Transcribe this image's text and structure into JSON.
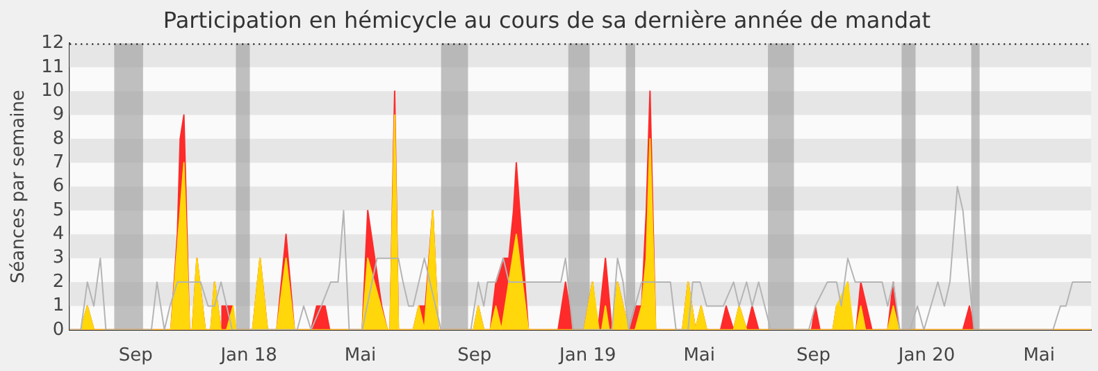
{
  "chart_data": {
    "type": "area",
    "title": "Participation en hémicycle au cours de sa dernière année de mandat",
    "ylabel": "Séances par semaine",
    "xlim": [
      "2017-06-22",
      "2020-06-26"
    ],
    "xticks": [
      {
        "value": "2017-09-01",
        "label": "Sep"
      },
      {
        "value": "2018-01-01",
        "label": "Jan 18"
      },
      {
        "value": "2018-05-01",
        "label": "Mai"
      },
      {
        "value": "2018-09-01",
        "label": "Sep"
      },
      {
        "value": "2019-01-01",
        "label": "Jan 19"
      },
      {
        "value": "2019-05-01",
        "label": "Mai"
      },
      {
        "value": "2019-09-01",
        "label": "Sep"
      },
      {
        "value": "2020-01-01",
        "label": "Jan 20"
      },
      {
        "value": "2020-05-01",
        "label": "Mai"
      }
    ],
    "ylim": [
      0,
      12
    ],
    "yticks": [
      0,
      1,
      2,
      3,
      4,
      5,
      6,
      7,
      8,
      9,
      10,
      11,
      12
    ],
    "legend": false,
    "bands": [
      {
        "axis": "x",
        "from": "2017-08-09",
        "to": "2017-09-09",
        "color": "#a0a0a0"
      },
      {
        "axis": "x",
        "from": "2017-12-18",
        "to": "2018-01-02",
        "color": "#a0a0a0"
      },
      {
        "axis": "x",
        "from": "2018-07-27",
        "to": "2018-08-25",
        "color": "#a0a0a0"
      },
      {
        "axis": "x",
        "from": "2018-12-11",
        "to": "2019-01-03",
        "color": "#a0a0a0"
      },
      {
        "axis": "x",
        "from": "2019-02-11",
        "to": "2019-02-21",
        "color": "#a0a0a0"
      },
      {
        "axis": "x",
        "from": "2019-07-14",
        "to": "2019-08-11",
        "color": "#a0a0a0"
      },
      {
        "axis": "x",
        "from": "2019-12-05",
        "to": "2019-12-20",
        "color": "#a0a0a0"
      },
      {
        "axis": "x",
        "from": "2020-02-18",
        "to": "2020-02-27",
        "color": "#a0a0a0"
      }
    ],
    "series": [
      {
        "type": "line",
        "color": "#b4b4b4",
        "x": [
          "2017-06-22",
          "2017-07-04",
          "2017-07-11",
          "2017-07-18",
          "2017-07-25",
          "2017-07-31",
          "2017-09-18",
          "2017-09-24",
          "2017-10-02",
          "2017-10-08",
          "2017-10-16",
          "2017-11-06",
          "2017-11-10",
          "2017-11-18",
          "2017-11-25",
          "2017-12-02",
          "2017-12-08",
          "2017-12-14",
          "2018-02-22",
          "2018-03-01",
          "2018-03-09",
          "2018-03-20",
          "2018-03-30",
          "2018-04-07",
          "2018-04-13",
          "2018-04-19",
          "2018-05-03",
          "2018-05-19",
          "2018-05-30",
          "2018-06-11",
          "2018-06-16",
          "2018-06-22",
          "2018-06-27",
          "2018-07-09",
          "2018-07-27",
          "2018-08-28",
          "2018-09-05",
          "2018-09-11",
          "2018-09-15",
          "2018-09-24",
          "2018-10-02",
          "2018-10-08",
          "2018-12-03",
          "2018-12-08",
          "2018-12-16",
          "2019-01-27",
          "2019-02-02",
          "2019-02-08",
          "2019-02-14",
          "2019-02-21",
          "2019-02-28",
          "2019-03-21",
          "2019-03-31",
          "2019-04-06",
          "2019-04-19",
          "2019-04-24",
          "2019-05-02",
          "2019-05-09",
          "2019-05-27",
          "2019-06-07",
          "2019-06-13",
          "2019-06-21",
          "2019-06-27",
          "2019-07-04",
          "2019-07-17",
          "2019-08-27",
          "2019-09-03",
          "2019-09-16",
          "2019-09-26",
          "2019-10-01",
          "2019-10-08",
          "2019-10-16",
          "2019-11-14",
          "2019-11-20",
          "2019-11-26",
          "2019-12-03",
          "2019-12-14",
          "2019-12-22",
          "2019-12-29",
          "2020-01-13",
          "2020-01-20",
          "2020-01-26",
          "2020-02-03",
          "2020-02-09",
          "2020-02-16",
          "2020-02-21",
          "2020-05-16",
          "2020-05-24",
          "2020-05-30",
          "2020-06-06",
          "2020-06-26"
        ],
        "values": [
          0,
          0,
          2,
          1,
          3,
          0,
          0,
          2,
          0,
          1,
          2,
          2,
          2,
          1,
          1,
          2,
          1,
          0,
          0,
          1,
          0,
          1,
          2,
          2,
          5,
          0,
          0,
          3,
          3,
          3,
          2,
          1,
          1,
          3,
          0,
          0,
          2,
          1,
          2,
          2,
          3,
          2,
          2,
          3,
          0,
          0,
          3,
          2,
          0,
          1,
          2,
          2,
          2,
          0,
          0,
          2,
          2,
          1,
          1,
          2,
          1,
          2,
          1,
          2,
          0,
          0,
          1,
          2,
          2,
          1,
          3,
          2,
          2,
          1,
          2,
          0,
          0,
          1,
          0,
          2,
          1,
          2,
          6,
          5,
          2,
          0,
          0,
          1,
          1,
          2,
          2
        ]
      },
      {
        "type": "area",
        "color": "#ff2a2a",
        "x": [
          "2017-06-22",
          "2017-07-04",
          "2017-07-11",
          "2017-07-18",
          "2017-10-09",
          "2017-10-16",
          "2017-10-19",
          "2017-10-23",
          "2017-10-29",
          "2017-11-01",
          "2017-11-06",
          "2017-11-15",
          "2017-11-21",
          "2017-11-25",
          "2017-12-02",
          "2017-12-03",
          "2017-12-14",
          "2017-12-18",
          "2018-01-05",
          "2018-01-13",
          "2018-01-21",
          "2018-01-31",
          "2018-02-10",
          "2018-02-19",
          "2018-03-09",
          "2018-03-15",
          "2018-03-24",
          "2018-03-29",
          "2018-05-03",
          "2018-05-09",
          "2018-05-24",
          "2018-05-30",
          "2018-06-02",
          "2018-06-07",
          "2018-06-11",
          "2018-06-27",
          "2018-07-03",
          "2018-07-10",
          "2018-07-18",
          "2018-07-24",
          "2018-08-31",
          "2018-09-05",
          "2018-09-11",
          "2018-09-18",
          "2018-09-24",
          "2018-10-02",
          "2018-10-08",
          "2018-10-13",
          "2018-10-16",
          "2018-10-29",
          "2018-11-30",
          "2018-12-08",
          "2018-12-16",
          "2018-12-28",
          "2019-01-06",
          "2019-01-12",
          "2019-01-20",
          "2019-01-27",
          "2019-02-02",
          "2019-02-14",
          "2019-02-21",
          "2019-02-28",
          "2019-03-05",
          "2019-03-09",
          "2019-03-15",
          "2019-04-13",
          "2019-04-19",
          "2019-04-27",
          "2019-05-03",
          "2019-05-09",
          "2019-05-24",
          "2019-05-30",
          "2019-06-07",
          "2019-06-13",
          "2019-06-21",
          "2019-06-27",
          "2019-07-04",
          "2019-08-30",
          "2019-09-03",
          "2019-09-08",
          "2019-09-22",
          "2019-09-26",
          "2019-10-04",
          "2019-10-08",
          "2019-10-12",
          "2019-10-17",
          "2019-10-22",
          "2019-11-03",
          "2019-11-20",
          "2019-11-26",
          "2019-12-02",
          "2020-02-09",
          "2020-02-16",
          "2020-02-21",
          "2020-06-26"
        ],
        "values": [
          0,
          0,
          1,
          0,
          0,
          4,
          8,
          9,
          0,
          0,
          3,
          0,
          0,
          2,
          0,
          1,
          1,
          0,
          0,
          3,
          0,
          0,
          4,
          0,
          0,
          1,
          1,
          0,
          0,
          5,
          1,
          0,
          0,
          10,
          0,
          0,
          1,
          1,
          5,
          0,
          0,
          1,
          0,
          0,
          2,
          3,
          3,
          5,
          7,
          0,
          0,
          2,
          0,
          0,
          2,
          0,
          3,
          0,
          2,
          0,
          1,
          1,
          5,
          10,
          0,
          0,
          2,
          0,
          1,
          0,
          0,
          1,
          0,
          1,
          0,
          1,
          0,
          0,
          1,
          0,
          0,
          1,
          1,
          2,
          0,
          0,
          2,
          0,
          0,
          2,
          0,
          0,
          1,
          0,
          0
        ]
      },
      {
        "type": "area",
        "color": "#ffd70a",
        "x": [
          "2017-06-22",
          "2017-07-04",
          "2017-07-11",
          "2017-07-18",
          "2017-10-09",
          "2017-10-23",
          "2017-10-29",
          "2017-11-01",
          "2017-11-06",
          "2017-11-15",
          "2017-11-21",
          "2017-11-25",
          "2017-12-02",
          "2017-12-08",
          "2017-12-15",
          "2017-12-18",
          "2018-01-05",
          "2018-01-13",
          "2018-01-21",
          "2018-01-31",
          "2018-02-10",
          "2018-02-19",
          "2018-05-03",
          "2018-05-09",
          "2018-05-30",
          "2018-06-02",
          "2018-06-07",
          "2018-06-11",
          "2018-06-27",
          "2018-07-03",
          "2018-07-09",
          "2018-07-18",
          "2018-07-24",
          "2018-08-31",
          "2018-09-05",
          "2018-09-11",
          "2018-09-18",
          "2018-09-24",
          "2018-09-30",
          "2018-10-16",
          "2018-10-29",
          "2018-12-28",
          "2019-01-06",
          "2019-01-13",
          "2019-01-16",
          "2019-01-20",
          "2019-01-24",
          "2019-01-27",
          "2019-02-02",
          "2019-02-14",
          "2019-02-21",
          "2019-02-28",
          "2019-03-05",
          "2019-03-09",
          "2019-03-15",
          "2019-04-13",
          "2019-04-19",
          "2019-04-27",
          "2019-05-03",
          "2019-05-09",
          "2019-06-07",
          "2019-06-13",
          "2019-06-21",
          "2019-09-22",
          "2019-09-26",
          "2019-10-08",
          "2019-10-14",
          "2019-10-17",
          "2019-10-22",
          "2019-10-27",
          "2019-11-20",
          "2019-11-26",
          "2019-12-02",
          "2020-06-26"
        ],
        "values": [
          0,
          0,
          1,
          0,
          0,
          7,
          0,
          0,
          3,
          0,
          0,
          2,
          0,
          0,
          1,
          0,
          0,
          3,
          0,
          0,
          3,
          0,
          0,
          3,
          0,
          0,
          9,
          0,
          0,
          1,
          0,
          5,
          0,
          0,
          1,
          0,
          0,
          1,
          0,
          4,
          0,
          0,
          2,
          0,
          0,
          1,
          0,
          0,
          2,
          0,
          0,
          1,
          3,
          8,
          0,
          0,
          2,
          0,
          1,
          0,
          0,
          1,
          0,
          0,
          1,
          2,
          0,
          0,
          1,
          0,
          0,
          1,
          0,
          0
        ]
      }
    ]
  }
}
